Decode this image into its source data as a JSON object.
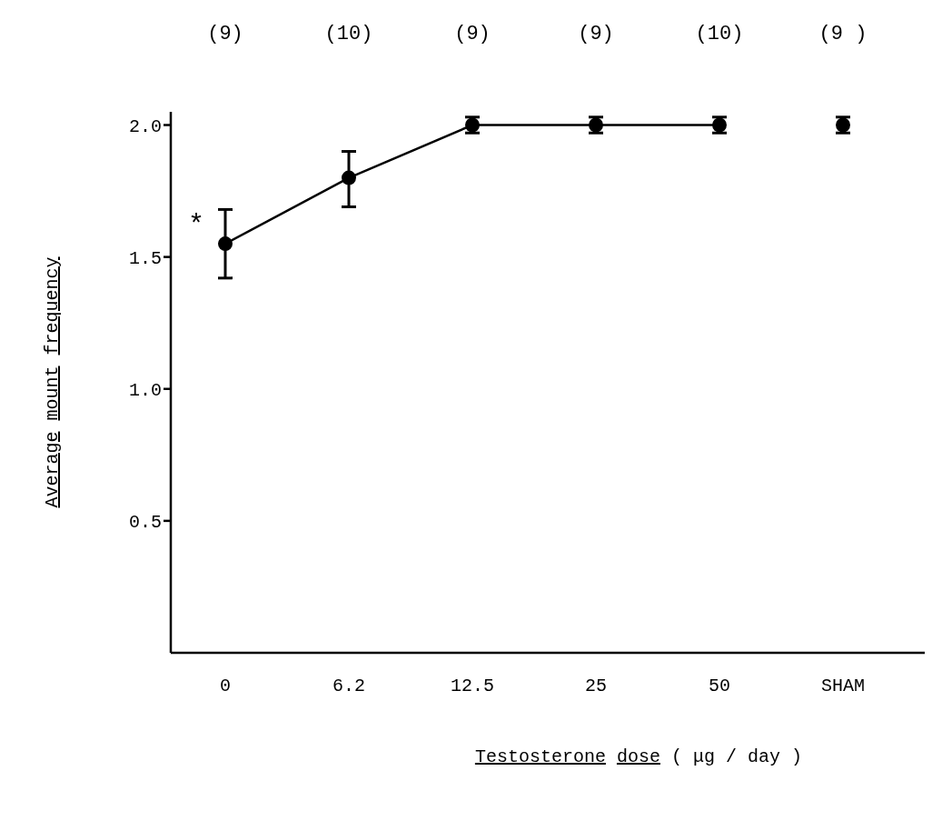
{
  "chart_data": {
    "type": "line",
    "xlabel": "Testosterone dose ( μg / day )",
    "ylabel": "Average mount frequency",
    "categories": [
      "0",
      "6.2",
      "12.5",
      "25",
      "50",
      "SHAM"
    ],
    "series": [
      {
        "color": "#000000",
        "values": [
          1.55,
          1.8,
          2.0,
          2.0,
          2.0,
          null
        ],
        "errors": [
          [
            1.42,
            1.68
          ],
          [
            1.69,
            1.9
          ],
          [
            1.97,
            2.03
          ],
          [
            1.97,
            2.03
          ],
          [
            1.97,
            2.03
          ],
          null
        ]
      },
      {
        "type": "scatter",
        "color": "#000000",
        "values": [
          null,
          null,
          null,
          null,
          null,
          2.0
        ],
        "errors": [
          null,
          null,
          null,
          null,
          null,
          [
            1.97,
            2.03
          ]
        ]
      }
    ],
    "ylim": [
      0,
      2.05
    ],
    "yticks": [
      {
        "value": 0.5,
        "label": "0.5"
      },
      {
        "value": 1,
        "label": "1.0"
      },
      {
        "value": 1.5,
        "label": "1.5"
      },
      {
        "value": 2,
        "label": "2.0"
      }
    ],
    "annotations": [
      "(9)",
      "(10)",
      "(9)",
      "(9)",
      "(10)",
      "(9 )",
      {
        "text": "*",
        "x": "0",
        "y": 1.62
      }
    ],
    "grid": false,
    "legend": false,
    "marker": "circle",
    "line_style": "solid"
  }
}
